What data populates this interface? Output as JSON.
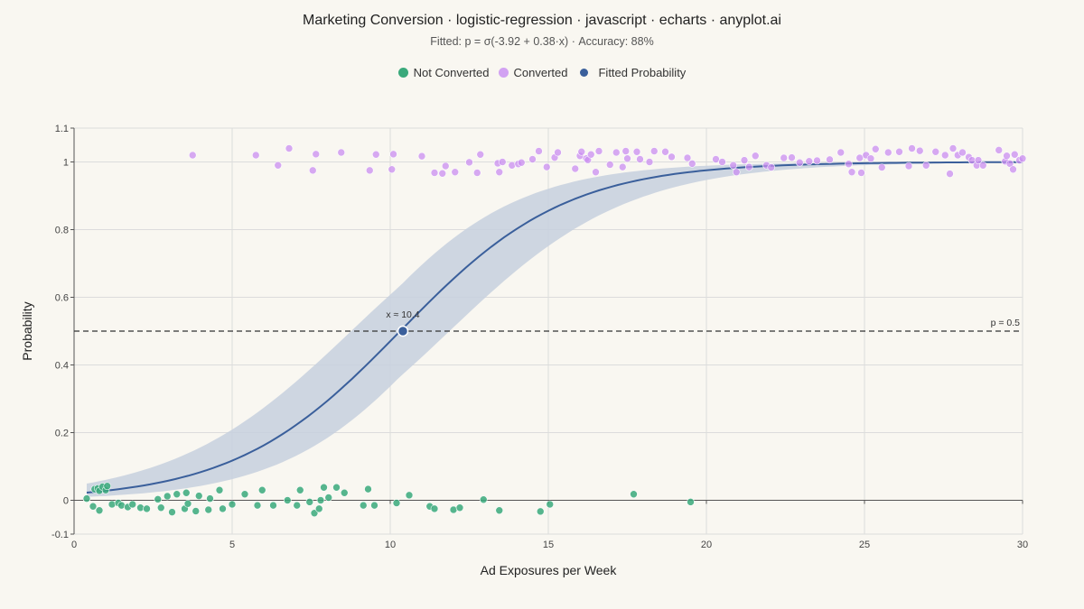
{
  "chart_data": {
    "type": "scatter",
    "title": "Marketing Conversion · logistic-regression · javascript · echarts · anyplot.ai",
    "subtitle": "Fitted: p = σ(-3.92 + 0.38·x) · Accuracy: 88%",
    "xlabel": "Ad Exposures per Week",
    "ylabel": "Probability",
    "xlim": [
      0,
      30
    ],
    "ylim": [
      -0.1,
      1.1
    ],
    "x_ticks": [
      0,
      5,
      10,
      15,
      20,
      25,
      30
    ],
    "y_ticks": [
      -0.1,
      0,
      0.2,
      0.4,
      0.6,
      0.8,
      1,
      1.1
    ],
    "y_tick_labels": [
      "-0.1",
      "0",
      "0.2",
      "0.4",
      "0.6",
      "0.8",
      "1",
      "1.1"
    ],
    "grid": true,
    "legend_position": "top-center",
    "colors": {
      "not_converted": "#3aa97b",
      "converted": "#c98df0",
      "fitted": "#3a5f9b",
      "band": "#c7d0de",
      "threshold": "#333333"
    },
    "model": {
      "intercept": -3.92,
      "slope": 0.38,
      "band_at_x0": [
        0.017,
        0.075
      ],
      "band_at_x10": [
        0.35,
        0.6
      ]
    },
    "threshold": {
      "y": 0.5,
      "label": "p = 0.5"
    },
    "decision_point": {
      "x": 10.4,
      "y": 0.5,
      "label": "x ≈ 10.4"
    },
    "series": [
      {
        "name": "Not Converted",
        "points": [
          [
            0.4,
            0.005
          ],
          [
            0.6,
            -0.018
          ],
          [
            0.65,
            0.033
          ],
          [
            0.75,
            0.035
          ],
          [
            0.8,
            -0.03
          ],
          [
            0.8,
            0.028
          ],
          [
            0.9,
            0.04
          ],
          [
            1.0,
            0.03
          ],
          [
            1.05,
            0.042
          ],
          [
            1.2,
            -0.012
          ],
          [
            1.4,
            -0.008
          ],
          [
            1.5,
            -0.015
          ],
          [
            1.7,
            -0.02
          ],
          [
            1.85,
            -0.012
          ],
          [
            2.1,
            -0.022
          ],
          [
            2.3,
            -0.025
          ],
          [
            2.65,
            0.003
          ],
          [
            2.75,
            -0.022
          ],
          [
            2.95,
            0.012
          ],
          [
            3.1,
            -0.035
          ],
          [
            3.25,
            0.018
          ],
          [
            3.5,
            -0.025
          ],
          [
            3.55,
            0.022
          ],
          [
            3.6,
            -0.01
          ],
          [
            3.85,
            -0.032
          ],
          [
            3.95,
            0.013
          ],
          [
            4.25,
            -0.028
          ],
          [
            4.3,
            0.005
          ],
          [
            4.6,
            0.03
          ],
          [
            4.7,
            -0.025
          ],
          [
            5.0,
            -0.012
          ],
          [
            5.4,
            0.018
          ],
          [
            5.8,
            -0.015
          ],
          [
            5.95,
            0.03
          ],
          [
            6.3,
            -0.015
          ],
          [
            6.75,
            0.0
          ],
          [
            7.05,
            -0.015
          ],
          [
            7.15,
            0.03
          ],
          [
            7.45,
            -0.005
          ],
          [
            7.6,
            -0.038
          ],
          [
            7.75,
            -0.025
          ],
          [
            7.8,
            0.0
          ],
          [
            7.9,
            0.038
          ],
          [
            8.05,
            0.008
          ],
          [
            8.3,
            0.038
          ],
          [
            8.55,
            0.022
          ],
          [
            9.15,
            -0.015
          ],
          [
            9.3,
            0.033
          ],
          [
            9.5,
            -0.015
          ],
          [
            10.2,
            -0.008
          ],
          [
            10.6,
            0.015
          ],
          [
            11.25,
            -0.018
          ],
          [
            11.4,
            -0.025
          ],
          [
            12.0,
            -0.028
          ],
          [
            12.2,
            -0.022
          ],
          [
            12.95,
            0.002
          ],
          [
            13.45,
            -0.03
          ],
          [
            14.75,
            -0.033
          ],
          [
            15.05,
            -0.012
          ],
          [
            17.7,
            0.018
          ],
          [
            19.5,
            -0.005
          ]
        ]
      },
      {
        "name": "Converted",
        "points": [
          [
            3.75,
            1.02
          ],
          [
            5.75,
            1.02
          ],
          [
            6.45,
            0.99
          ],
          [
            6.8,
            1.04
          ],
          [
            7.55,
            0.975
          ],
          [
            7.65,
            1.023
          ],
          [
            8.45,
            1.028
          ],
          [
            9.35,
            0.975
          ],
          [
            9.55,
            1.022
          ],
          [
            10.05,
            0.978
          ],
          [
            10.1,
            1.023
          ],
          [
            11.0,
            1.017
          ],
          [
            11.4,
            0.968
          ],
          [
            11.65,
            0.966
          ],
          [
            11.75,
            0.988
          ],
          [
            12.05,
            0.97
          ],
          [
            12.5,
            0.999
          ],
          [
            12.75,
            0.968
          ],
          [
            12.85,
            1.022
          ],
          [
            13.4,
            0.996
          ],
          [
            13.45,
            0.97
          ],
          [
            13.55,
            1.0
          ],
          [
            13.85,
            0.99
          ],
          [
            14.05,
            0.994
          ],
          [
            14.15,
            0.998
          ],
          [
            14.5,
            1.008
          ],
          [
            14.7,
            1.032
          ],
          [
            14.95,
            0.985
          ],
          [
            15.2,
            1.013
          ],
          [
            15.3,
            1.028
          ],
          [
            15.85,
            0.98
          ],
          [
            16.0,
            1.018
          ],
          [
            16.05,
            1.03
          ],
          [
            16.2,
            1.01
          ],
          [
            16.25,
            1.006
          ],
          [
            16.35,
            1.022
          ],
          [
            16.5,
            0.97
          ],
          [
            16.6,
            1.032
          ],
          [
            16.95,
            0.992
          ],
          [
            17.15,
            1.028
          ],
          [
            17.35,
            0.985
          ],
          [
            17.45,
            1.032
          ],
          [
            17.5,
            1.01
          ],
          [
            17.8,
            1.03
          ],
          [
            17.9,
            1.008
          ],
          [
            18.2,
            1.0
          ],
          [
            18.35,
            1.032
          ],
          [
            18.7,
            1.03
          ],
          [
            18.9,
            1.015
          ],
          [
            19.4,
            1.012
          ],
          [
            19.55,
            0.995
          ],
          [
            20.3,
            1.008
          ],
          [
            20.5,
            1.0
          ],
          [
            20.85,
            0.99
          ],
          [
            20.95,
            0.97
          ],
          [
            21.2,
            1.005
          ],
          [
            21.35,
            0.985
          ],
          [
            21.55,
            1.018
          ],
          [
            21.9,
            0.99
          ],
          [
            22.05,
            0.984
          ],
          [
            22.45,
            1.012
          ],
          [
            22.7,
            1.013
          ],
          [
            22.95,
            0.998
          ],
          [
            23.25,
            1.002
          ],
          [
            23.5,
            1.004
          ],
          [
            23.9,
            1.007
          ],
          [
            24.25,
            1.028
          ],
          [
            24.5,
            0.994
          ],
          [
            24.6,
            0.97
          ],
          [
            24.85,
            1.012
          ],
          [
            24.9,
            0.968
          ],
          [
            25.05,
            1.02
          ],
          [
            25.2,
            1.01
          ],
          [
            25.35,
            1.038
          ],
          [
            25.55,
            0.984
          ],
          [
            25.75,
            1.028
          ],
          [
            26.1,
            1.03
          ],
          [
            26.4,
            0.988
          ],
          [
            26.5,
            1.04
          ],
          [
            26.75,
            1.033
          ],
          [
            26.95,
            0.99
          ],
          [
            27.25,
            1.03
          ],
          [
            27.55,
            1.02
          ],
          [
            27.7,
            0.965
          ],
          [
            27.8,
            1.04
          ],
          [
            27.95,
            1.02
          ],
          [
            28.1,
            1.028
          ],
          [
            28.3,
            1.014
          ],
          [
            28.4,
            1.005
          ],
          [
            28.55,
            0.99
          ],
          [
            28.6,
            1.005
          ],
          [
            28.75,
            0.99
          ],
          [
            29.25,
            1.035
          ],
          [
            29.45,
            1.002
          ],
          [
            29.5,
            1.018
          ],
          [
            29.6,
            0.995
          ],
          [
            29.7,
            0.978
          ],
          [
            29.75,
            1.022
          ],
          [
            29.9,
            1.005
          ],
          [
            30.0,
            1.01
          ]
        ]
      },
      {
        "name": "Fitted Probability"
      }
    ]
  }
}
